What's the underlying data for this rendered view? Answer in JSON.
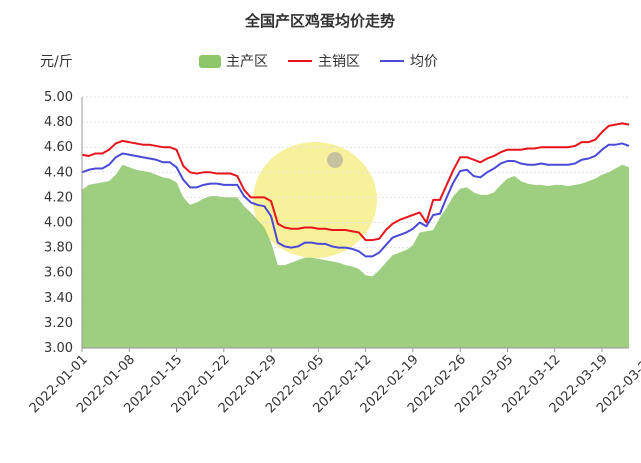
{
  "chart_data": {
    "type": "line",
    "title": "全国产区鸡蛋均价走势",
    "ylabel": "元/斤",
    "xlabel": "",
    "ylim": [
      3.0,
      5.0
    ],
    "yticks": [
      "3.00",
      "3.20",
      "3.40",
      "3.60",
      "3.80",
      "4.00",
      "4.20",
      "4.40",
      "4.60",
      "4.80",
      "5.00"
    ],
    "xtick_labels": [
      "2022-01-01",
      "2022-01-08",
      "2022-01-15",
      "2022-01-22",
      "2022-01-29",
      "2022-02-05",
      "2022-02-12",
      "2022-02-19",
      "2022-02-26",
      "2022-03-05",
      "2022-03-12",
      "2022-03-19",
      "2022-03-26",
      "2022-04-02"
    ],
    "grid": true,
    "legend": "top-center",
    "series": [
      {
        "name": "主产区",
        "style": "area",
        "color": "#8dc76a",
        "values": [
          4.26,
          4.3,
          4.31,
          4.32,
          4.33,
          4.38,
          4.46,
          4.44,
          4.42,
          4.41,
          4.4,
          4.38,
          4.36,
          4.35,
          4.32,
          4.2,
          4.14,
          4.16,
          4.19,
          4.21,
          4.21,
          4.2,
          4.2,
          4.2,
          4.13,
          4.08,
          4.02,
          3.96,
          3.84,
          3.66,
          3.66,
          3.68,
          3.7,
          3.72,
          3.72,
          3.71,
          3.7,
          3.69,
          3.68,
          3.66,
          3.65,
          3.63,
          3.58,
          3.57,
          3.62,
          3.68,
          3.74,
          3.76,
          3.78,
          3.82,
          3.92,
          3.93,
          3.94,
          4.04,
          4.12,
          4.21,
          4.27,
          4.28,
          4.24,
          4.22,
          4.22,
          4.24,
          4.3,
          4.35,
          4.37,
          4.33,
          4.31,
          4.3,
          4.3,
          4.29,
          4.3,
          4.3,
          4.29,
          4.3,
          4.31,
          4.33,
          4.35,
          4.38,
          4.4,
          4.43,
          4.46,
          4.44
        ]
      },
      {
        "name": "主销区",
        "style": "line",
        "color": "#e8141b",
        "values": [
          4.54,
          4.53,
          4.55,
          4.55,
          4.58,
          4.63,
          4.65,
          4.64,
          4.63,
          4.62,
          4.62,
          4.61,
          4.6,
          4.6,
          4.58,
          4.45,
          4.4,
          4.39,
          4.4,
          4.4,
          4.39,
          4.39,
          4.39,
          4.37,
          4.26,
          4.2,
          4.2,
          4.2,
          4.17,
          3.99,
          3.96,
          3.95,
          3.95,
          3.96,
          3.96,
          3.95,
          3.95,
          3.94,
          3.94,
          3.94,
          3.93,
          3.92,
          3.86,
          3.86,
          3.87,
          3.94,
          3.99,
          4.02,
          4.04,
          4.06,
          4.08,
          4.0,
          4.18,
          4.18,
          4.3,
          4.42,
          4.52,
          4.52,
          4.5,
          4.48,
          4.51,
          4.53,
          4.56,
          4.58,
          4.58,
          4.58,
          4.59,
          4.59,
          4.6,
          4.6,
          4.6,
          4.6,
          4.6,
          4.61,
          4.64,
          4.64,
          4.66,
          4.72,
          4.77,
          4.78,
          4.79,
          4.78
        ]
      },
      {
        "name": "均价",
        "style": "line",
        "color": "#4a4ad6",
        "values": [
          4.4,
          4.42,
          4.43,
          4.43,
          4.46,
          4.52,
          4.55,
          4.54,
          4.53,
          4.52,
          4.51,
          4.5,
          4.48,
          4.48,
          4.44,
          4.34,
          4.28,
          4.28,
          4.3,
          4.31,
          4.31,
          4.3,
          4.3,
          4.3,
          4.21,
          4.16,
          4.14,
          4.13,
          4.05,
          3.84,
          3.81,
          3.8,
          3.81,
          3.84,
          3.84,
          3.83,
          3.83,
          3.81,
          3.8,
          3.8,
          3.79,
          3.77,
          3.73,
          3.73,
          3.76,
          3.82,
          3.88,
          3.9,
          3.92,
          3.95,
          4.0,
          3.97,
          4.06,
          4.07,
          4.2,
          4.32,
          4.41,
          4.42,
          4.37,
          4.36,
          4.4,
          4.43,
          4.47,
          4.49,
          4.49,
          4.47,
          4.46,
          4.46,
          4.47,
          4.46,
          4.46,
          4.46,
          4.46,
          4.47,
          4.5,
          4.51,
          4.53,
          4.58,
          4.62,
          4.62,
          4.63,
          4.61
        ]
      }
    ]
  }
}
